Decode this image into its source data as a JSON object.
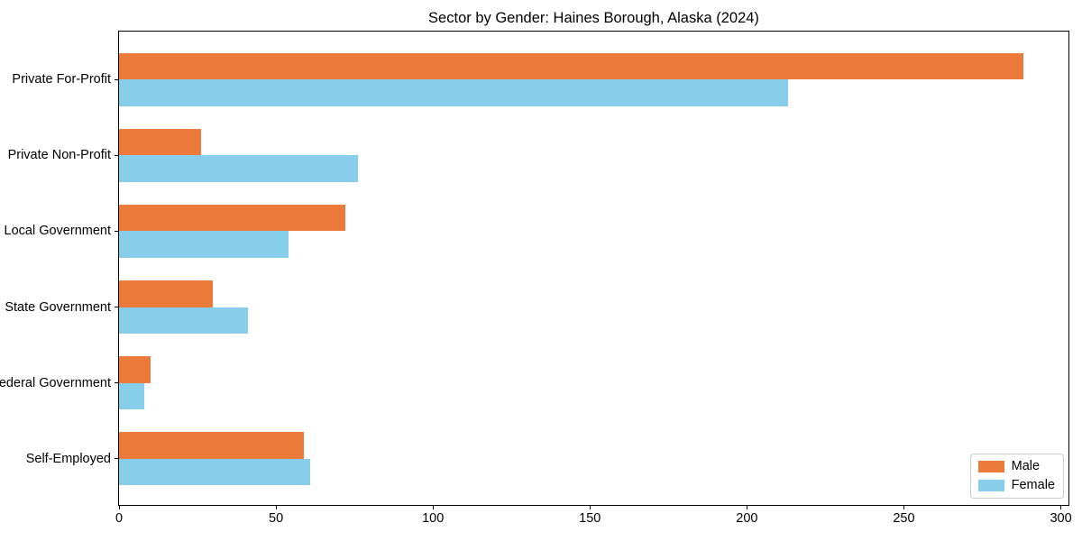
{
  "chart_data": {
    "type": "bar",
    "orientation": "horizontal",
    "title": "Sector by Gender: Haines Borough, Alaska (2024)",
    "categories": [
      "Private For-Profit",
      "Private Non-Profit",
      "Local Government",
      "State Government",
      "Federal Government",
      "Self-Employed"
    ],
    "series": [
      {
        "name": "Male",
        "color": "#EC7A3B",
        "values": [
          288,
          26,
          72,
          30,
          10,
          59
        ]
      },
      {
        "name": "Female",
        "color": "#87CEEB",
        "values": [
          213,
          76,
          54,
          41,
          8,
          61
        ]
      }
    ],
    "xlabel": "",
    "ylabel": "",
    "xlim": [
      0,
      303
    ],
    "x_ticks": [
      0,
      50,
      100,
      150,
      200,
      250,
      300
    ],
    "grid": false,
    "legend_position": "lower right",
    "axis_color": "#000000",
    "background_color": "#ffffff"
  }
}
